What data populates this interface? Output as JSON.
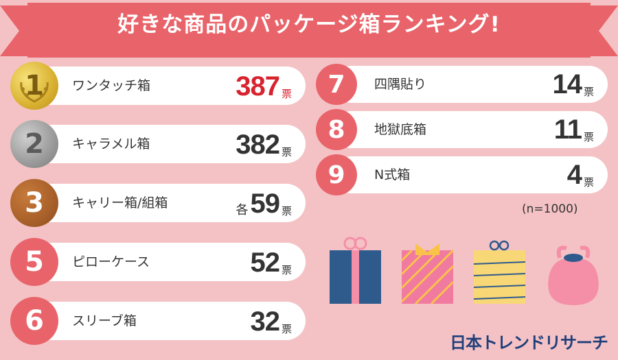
{
  "header": {
    "title": "好きな商品のパッケージ箱ランキング!"
  },
  "sample_size": "(n=1000)",
  "brand_logo": "日本トレンドリサーチ",
  "vote_unit": "票",
  "colors": {
    "background": "#f4c2c5",
    "banner": "#e8646a",
    "accent": "#d8232f"
  },
  "illustrations": [
    "blue-gift-box-icon",
    "pink-striped-box-icon",
    "yellow-striped-box-icon",
    "pink-pouch-icon"
  ],
  "chart_data": {
    "type": "bar",
    "title": "好きな商品のパッケージ箱ランキング!",
    "categories": [
      "ワンタッチ箱",
      "キャラメル箱",
      "キャリー箱/組箱",
      "ピローケース",
      "スリーブ箱",
      "四隅貼り",
      "地獄底箱",
      "N式箱"
    ],
    "ranks": [
      "1",
      "2",
      "3",
      "5",
      "6",
      "7",
      "8",
      "9"
    ],
    "values": [
      387,
      382,
      59,
      52,
      32,
      14,
      11,
      4
    ],
    "prefixes": [
      "",
      "",
      "各",
      "",
      "",
      "",
      "",
      ""
    ]
  }
}
